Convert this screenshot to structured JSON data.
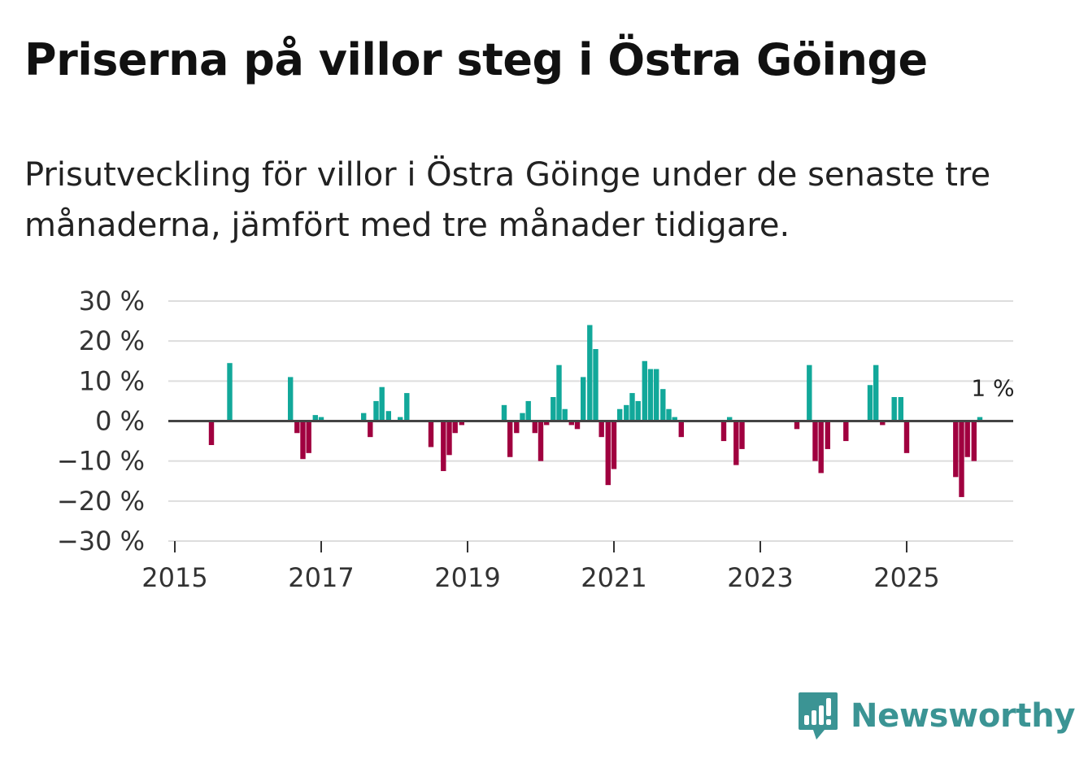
{
  "title": "Priserna på villor steg i Östra Göinge",
  "subtitle": "Prisutveckling för villor i Östra Göinge under de senaste tre månaderna, jämfört med tre månader tidigare.",
  "brand": {
    "name": "Newsworthy",
    "icon": "newsworthy-bar-chart-icon",
    "color": "#3b9494"
  },
  "chart_data": {
    "type": "bar",
    "title": "Priserna på villor steg i Östra Göinge",
    "xlabel": "",
    "ylabel": "",
    "ylim": [
      -30,
      30
    ],
    "yticks": [
      -30,
      -20,
      -10,
      0,
      10,
      20,
      30
    ],
    "ytick_labels": [
      "−30 %",
      "−20 %",
      "−10 %",
      "0 %",
      "10 %",
      "20 %",
      "30 %"
    ],
    "xlim": [
      2015,
      2026.5
    ],
    "xticks": [
      2015,
      2017,
      2019,
      2021,
      2023,
      2025
    ],
    "xtick_labels": [
      "2015",
      "2017",
      "2019",
      "2021",
      "2023",
      "2025"
    ],
    "grid": true,
    "colors": {
      "positive": "#12a89a",
      "negative": "#a0003f",
      "zero_line": "#444444",
      "grid": "#dddddd"
    },
    "annotation": {
      "text": "1 %",
      "x": 2026.0,
      "y": 1
    },
    "x": [
      2015.5,
      2015.75,
      2016.58,
      2016.67,
      2016.75,
      2016.83,
      2016.92,
      2017.0,
      2017.58,
      2017.67,
      2017.75,
      2017.83,
      2017.92,
      2018.08,
      2018.17,
      2018.5,
      2018.67,
      2018.75,
      2018.83,
      2018.92,
      2019.5,
      2019.58,
      2019.67,
      2019.75,
      2019.83,
      2019.92,
      2020.0,
      2020.08,
      2020.17,
      2020.25,
      2020.33,
      2020.42,
      2020.5,
      2020.58,
      2020.67,
      2020.75,
      2020.83,
      2020.92,
      2021.0,
      2021.08,
      2021.17,
      2021.25,
      2021.33,
      2021.42,
      2021.5,
      2021.58,
      2021.67,
      2021.75,
      2021.83,
      2021.92,
      2022.5,
      2022.58,
      2022.67,
      2022.75,
      2023.5,
      2023.67,
      2023.75,
      2023.83,
      2023.92,
      2024.17,
      2024.5,
      2024.58,
      2024.67,
      2024.83,
      2024.92,
      2025.0,
      2025.67,
      2025.75,
      2025.83,
      2025.92,
      2026.0
    ],
    "values": [
      -6,
      14.5,
      11,
      -3,
      -9.5,
      -8,
      1.5,
      1,
      2,
      -4,
      5,
      8.5,
      2.5,
      1,
      7,
      -6.5,
      -12.5,
      -8.5,
      -3,
      -1,
      4,
      -9,
      -3,
      2,
      5,
      -3,
      -10,
      -1,
      6,
      14,
      3,
      -1,
      -2,
      11,
      24,
      18,
      -4,
      -16,
      -12,
      3,
      4,
      7,
      5,
      15,
      13,
      13,
      8,
      3,
      1,
      -4,
      -5,
      1,
      -11,
      -7,
      -2,
      14,
      -10,
      -13,
      -7,
      -5,
      9,
      14,
      -1,
      6,
      6,
      -8,
      -14,
      -19,
      -9,
      -10,
      1
    ]
  }
}
